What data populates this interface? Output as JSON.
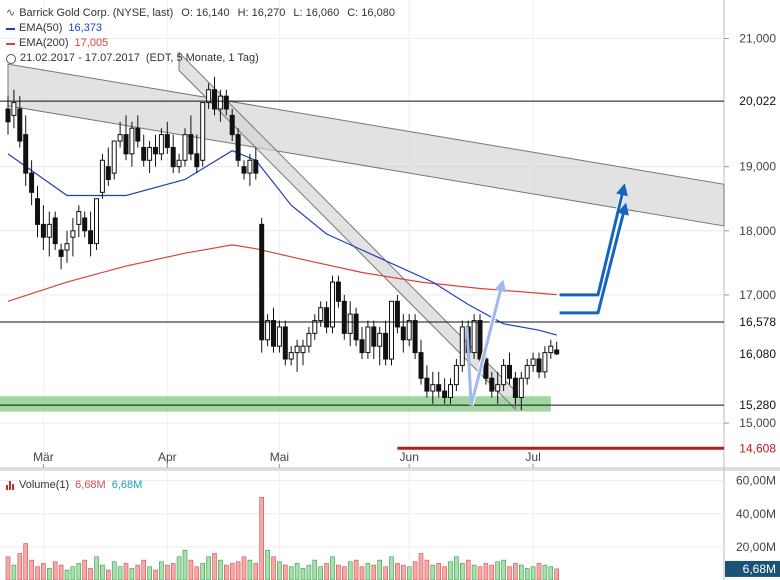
{
  "header": {
    "title": "Barrick Gold Corp. (NYSE, last)",
    "ohlc": [
      {
        "label": "O:",
        "value": "16,140"
      },
      {
        "label": "H:",
        "value": "16,270"
      },
      {
        "label": "L:",
        "value": "16,060"
      },
      {
        "label": "C:",
        "value": "16,080"
      }
    ],
    "ema50": {
      "label": "EMA(50)",
      "value": "16,373",
      "color": "#1f3fbf"
    },
    "ema200": {
      "label": "EMA(200)",
      "value": "17,005",
      "color": "#d9453a"
    },
    "range": {
      "dates": "21.02.2017 - 17.07.2017",
      "info": "(EDT, 5 Monate, 1 Tag)"
    }
  },
  "volume_legend": {
    "label": "Volume(1)",
    "value1": "6,68M",
    "value2": "6,68M"
  },
  "chart_data": {
    "type": "candlestick",
    "y_axis": {
      "min": 14.3,
      "max": 21.6,
      "ticks": [
        {
          "v": 21.0,
          "label": "21,000"
        },
        {
          "v": 19.0,
          "label": "19,000"
        },
        {
          "v": 18.0,
          "label": "18,000"
        },
        {
          "v": 17.0,
          "label": "17,000"
        },
        {
          "v": 15.0,
          "label": "15,000"
        }
      ]
    },
    "x_axis": {
      "labels": [
        {
          "label": "Mär",
          "i": 6
        },
        {
          "label": "Apr",
          "i": 27
        },
        {
          "label": "Mai",
          "i": 46
        },
        {
          "label": "Jun",
          "i": 68
        },
        {
          "label": "Jul",
          "i": 89
        }
      ]
    },
    "candles": [
      [
        19.9,
        20.1,
        19.5,
        19.7
      ],
      [
        19.8,
        20.2,
        19.6,
        20.0
      ],
      [
        19.9,
        20.1,
        19.3,
        19.4
      ],
      [
        19.5,
        19.8,
        18.7,
        18.9
      ],
      [
        18.9,
        19.1,
        18.4,
        18.6
      ],
      [
        18.5,
        18.7,
        17.9,
        18.1
      ],
      [
        18.1,
        18.4,
        17.7,
        17.9
      ],
      [
        17.9,
        18.3,
        17.6,
        18.1
      ],
      [
        18.2,
        18.3,
        17.7,
        17.8
      ],
      [
        17.7,
        17.8,
        17.4,
        17.6
      ],
      [
        17.7,
        18.0,
        17.5,
        17.8
      ],
      [
        17.9,
        18.2,
        17.6,
        18.0
      ],
      [
        18.1,
        18.4,
        17.9,
        18.3
      ],
      [
        18.2,
        18.3,
        17.9,
        18.0
      ],
      [
        18.0,
        18.3,
        17.6,
        17.8
      ],
      [
        17.8,
        18.5,
        17.7,
        18.5
      ],
      [
        18.6,
        19.2,
        18.5,
        19.1
      ],
      [
        19.0,
        19.3,
        18.7,
        18.8
      ],
      [
        18.9,
        19.4,
        18.8,
        19.4
      ],
      [
        19.4,
        19.7,
        19.3,
        19.5
      ],
      [
        19.5,
        19.8,
        19.1,
        19.2
      ],
      [
        19.2,
        19.7,
        19.0,
        19.6
      ],
      [
        19.6,
        19.8,
        19.3,
        19.4
      ],
      [
        19.3,
        19.5,
        19.0,
        19.1
      ],
      [
        19.1,
        19.4,
        18.9,
        19.3
      ],
      [
        19.3,
        19.5,
        19.0,
        19.2
      ],
      [
        19.2,
        19.6,
        19.1,
        19.5
      ],
      [
        19.5,
        19.7,
        19.2,
        19.3
      ],
      [
        19.3,
        19.5,
        18.9,
        19.0
      ],
      [
        19.0,
        19.2,
        18.9,
        19.1
      ],
      [
        19.1,
        19.6,
        19.0,
        19.5
      ],
      [
        19.5,
        19.8,
        19.1,
        19.2
      ],
      [
        19.2,
        19.5,
        18.9,
        19.0
      ],
      [
        19.1,
        20.0,
        19.0,
        20.0
      ],
      [
        20.0,
        20.3,
        19.9,
        20.2
      ],
      [
        20.2,
        20.4,
        19.8,
        19.9
      ],
      [
        19.9,
        20.2,
        19.7,
        20.1
      ],
      [
        20.1,
        20.2,
        19.8,
        19.9
      ],
      [
        19.8,
        19.9,
        19.4,
        19.5
      ],
      [
        19.5,
        19.6,
        19.0,
        19.1
      ],
      [
        19.0,
        19.1,
        18.8,
        18.9
      ],
      [
        18.9,
        19.2,
        18.7,
        19.1
      ],
      [
        19.1,
        19.3,
        18.8,
        18.9
      ],
      [
        18.1,
        18.2,
        16.1,
        16.3
      ],
      [
        16.3,
        16.7,
        16.2,
        16.6
      ],
      [
        16.6,
        16.8,
        16.1,
        16.2
      ],
      [
        16.2,
        16.6,
        16.1,
        16.5
      ],
      [
        16.5,
        16.6,
        15.9,
        16.0
      ],
      [
        16.0,
        16.2,
        15.9,
        16.1
      ],
      [
        16.1,
        16.3,
        15.8,
        16.2
      ],
      [
        16.1,
        16.3,
        15.9,
        16.2
      ],
      [
        16.2,
        16.5,
        16.1,
        16.4
      ],
      [
        16.4,
        16.7,
        16.3,
        16.6
      ],
      [
        16.6,
        16.9,
        16.5,
        16.8
      ],
      [
        16.8,
        16.9,
        16.4,
        16.5
      ],
      [
        16.5,
        17.3,
        16.4,
        17.2
      ],
      [
        17.2,
        17.3,
        16.8,
        16.9
      ],
      [
        16.9,
        17.0,
        16.3,
        16.4
      ],
      [
        16.4,
        16.9,
        16.2,
        16.7
      ],
      [
        16.7,
        16.8,
        16.2,
        16.3
      ],
      [
        16.3,
        16.5,
        16.0,
        16.1
      ],
      [
        16.1,
        16.6,
        16.0,
        16.5
      ],
      [
        16.5,
        16.6,
        16.0,
        16.2
      ],
      [
        16.2,
        16.5,
        15.9,
        16.4
      ],
      [
        16.4,
        16.6,
        15.9,
        16.0
      ],
      [
        16.0,
        16.9,
        15.9,
        16.9
      ],
      [
        16.9,
        17.0,
        16.4,
        16.5
      ],
      [
        16.5,
        16.7,
        16.1,
        16.3
      ],
      [
        16.3,
        16.7,
        16.2,
        16.6
      ],
      [
        16.6,
        16.7,
        16.0,
        16.1
      ],
      [
        16.1,
        16.3,
        15.6,
        15.7
      ],
      [
        15.7,
        15.9,
        15.4,
        15.5
      ],
      [
        15.5,
        15.8,
        15.3,
        15.6
      ],
      [
        15.6,
        15.8,
        15.4,
        15.5
      ],
      [
        15.5,
        15.7,
        15.3,
        15.4
      ],
      [
        15.4,
        15.7,
        15.3,
        15.6
      ],
      [
        15.6,
        16.0,
        15.5,
        15.9
      ],
      [
        15.9,
        16.6,
        15.8,
        16.5
      ],
      [
        16.5,
        16.6,
        16.0,
        16.1
      ],
      [
        16.1,
        16.7,
        16.0,
        16.6
      ],
      [
        16.6,
        16.7,
        15.9,
        16.0
      ],
      [
        16.0,
        16.1,
        15.6,
        15.7
      ],
      [
        15.7,
        15.8,
        15.4,
        15.5
      ],
      [
        15.5,
        15.8,
        15.3,
        15.6
      ],
      [
        15.6,
        16.0,
        15.5,
        15.9
      ],
      [
        15.9,
        16.1,
        15.6,
        15.7
      ],
      [
        15.7,
        15.8,
        15.3,
        15.4
      ],
      [
        15.4,
        15.8,
        15.2,
        15.7
      ],
      [
        15.7,
        16.0,
        15.6,
        15.9
      ],
      [
        15.9,
        16.1,
        15.8,
        16.0
      ],
      [
        16.0,
        16.1,
        15.7,
        15.8
      ],
      [
        15.8,
        16.2,
        15.7,
        16.1
      ],
      [
        16.1,
        16.3,
        16.0,
        16.2
      ],
      [
        16.14,
        16.27,
        16.06,
        16.08
      ]
    ],
    "ema50": [
      [
        0,
        19.2
      ],
      [
        10,
        18.55
      ],
      [
        20,
        18.55
      ],
      [
        30,
        18.8
      ],
      [
        38,
        19.25
      ],
      [
        42,
        19.1
      ],
      [
        48,
        18.4
      ],
      [
        54,
        17.95
      ],
      [
        60,
        17.7
      ],
      [
        66,
        17.45
      ],
      [
        72,
        17.2
      ],
      [
        78,
        16.85
      ],
      [
        84,
        16.55
      ],
      [
        90,
        16.45
      ],
      [
        93,
        16.373
      ]
    ],
    "ema200": [
      [
        0,
        16.9
      ],
      [
        10,
        17.2
      ],
      [
        20,
        17.45
      ],
      [
        30,
        17.65
      ],
      [
        38,
        17.78
      ],
      [
        42,
        17.72
      ],
      [
        50,
        17.55
      ],
      [
        60,
        17.35
      ],
      [
        70,
        17.2
      ],
      [
        80,
        17.1
      ],
      [
        93,
        17.005
      ]
    ],
    "horizontal_lines": [
      {
        "value": 20.022,
        "label": "20,022"
      },
      {
        "value": 16.578,
        "label": "16,578"
      },
      {
        "value": 15.28,
        "label": "15,280"
      }
    ],
    "support_line": {
      "value": 14.608,
      "label": "14,608",
      "color": "#b71c1c"
    },
    "current_price": {
      "value": 16.08,
      "label": "16,080"
    },
    "channels": [
      {
        "from": [
          0,
          20.6
        ],
        "to": [
          123,
          18.7
        ],
        "width": 0.65
      },
      {
        "from": [
          29,
          20.78
        ],
        "to": [
          86,
          15.5
        ],
        "width": 0.28
      }
    ],
    "support_zone": {
      "from_i": 0,
      "to_i": 92,
      "lo": 15.18,
      "hi": 15.42,
      "color": "#7fc97f"
    },
    "volume": {
      "ticks": [
        {
          "v": 60,
          "label": "60,00M"
        },
        {
          "v": 40,
          "label": "40,00M"
        },
        {
          "v": 20,
          "label": "20,00M"
        }
      ],
      "max": 64,
      "current": "6,68M",
      "values": [
        14,
        9,
        16,
        22,
        12,
        8,
        10,
        7,
        11,
        9,
        6,
        8,
        10,
        12,
        7,
        14,
        9,
        6,
        11,
        8,
        10,
        7,
        9,
        12,
        8,
        6,
        11,
        9,
        10,
        14,
        18,
        12,
        8,
        10,
        14,
        16,
        12,
        9,
        10,
        11,
        14,
        12,
        10,
        50,
        18,
        14,
        11,
        9,
        8,
        10,
        7,
        9,
        12,
        8,
        10,
        14,
        9,
        8,
        11,
        12,
        8,
        10,
        9,
        12,
        8,
        14,
        10,
        9,
        8,
        11,
        16,
        12,
        9,
        10,
        8,
        11,
        14,
        10,
        12,
        9,
        8,
        10,
        9,
        11,
        12,
        8,
        10,
        9,
        7,
        8,
        10,
        9,
        8,
        6.68
      ],
      "colors_up_down": [
        "#2e9e3c",
        "#d94c4c"
      ]
    },
    "arrows": [
      {
        "kind": "projection",
        "points": [
          [
            78.5,
            15.28
          ],
          [
            83.7,
            17.15
          ]
        ],
        "color": "#9fb8ee"
      },
      {
        "kind": "projection",
        "points": [
          [
            93.5,
            17.0
          ],
          [
            100,
            17.0
          ],
          [
            104.3,
            18.65
          ]
        ],
        "color": "#1565c0"
      },
      {
        "kind": "projection",
        "points": [
          [
            93.5,
            16.72
          ],
          [
            100,
            16.72
          ],
          [
            104.5,
            18.35
          ]
        ],
        "color": "#1565c0"
      }
    ]
  }
}
